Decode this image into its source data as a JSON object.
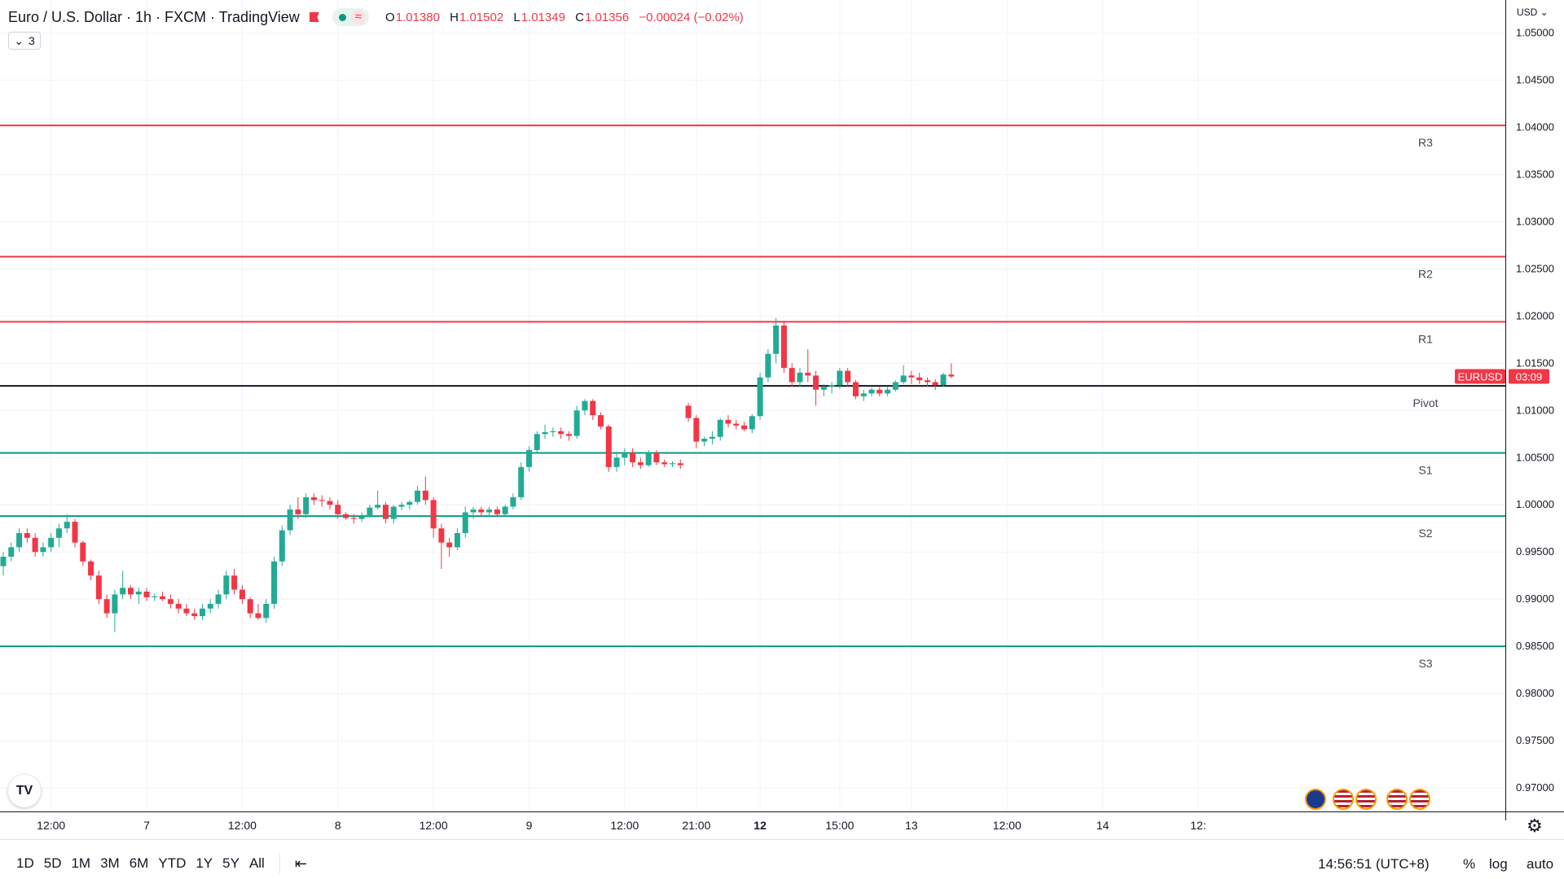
{
  "header": {
    "title": "Euro / U.S. Dollar · 1h · FXCM · TradingView",
    "ohlc": {
      "o_label": "O",
      "o": "1.01380",
      "h_label": "H",
      "h": "1.01502",
      "l_label": "L",
      "l": "1.01349",
      "c_label": "C",
      "c": "1.01356",
      "change": "−0.00024 (−0.02%)"
    },
    "indicator_count": "3",
    "currency": "USD"
  },
  "colors": {
    "up": "#22ab94",
    "down": "#f23645",
    "resistance": "#f23645",
    "support": "#089981",
    "pivot": "#131722",
    "grid": "#f0f3fa",
    "axis_text": "#131722"
  },
  "chart_data": {
    "type": "candlestick",
    "y_ticks": [
      "1.05000",
      "1.04500",
      "1.04000",
      "1.03500",
      "1.03000",
      "1.02500",
      "1.02000",
      "1.01500",
      "1.01000",
      "1.00500",
      "1.00000",
      "0.99500",
      "0.99000",
      "0.98500",
      "0.98000",
      "0.97500",
      "0.97000"
    ],
    "ylim": [
      0.9675,
      1.0535
    ],
    "x_ticks": [
      {
        "label": "12:00",
        "i": 6,
        "bold": false
      },
      {
        "label": "7",
        "i": 18,
        "bold": false
      },
      {
        "label": "12:00",
        "i": 30,
        "bold": false
      },
      {
        "label": "8",
        "i": 42,
        "bold": false
      },
      {
        "label": "12:00",
        "i": 54,
        "bold": false
      },
      {
        "label": "9",
        "i": 66,
        "bold": false
      },
      {
        "label": "12:00",
        "i": 78,
        "bold": false
      },
      {
        "label": "21:00",
        "i": 87,
        "bold": false
      },
      {
        "label": "12",
        "i": 95,
        "bold": true
      },
      {
        "label": "15:00",
        "i": 105,
        "bold": false
      },
      {
        "label": "13",
        "i": 114,
        "bold": false
      },
      {
        "label": "12:00",
        "i": 126,
        "bold": false
      },
      {
        "label": "14",
        "i": 138,
        "bold": false
      },
      {
        "label": "12:",
        "i": 150,
        "bold": false
      }
    ],
    "levels": [
      {
        "name": "R3",
        "value": 1.0402,
        "kind": "resistance"
      },
      {
        "name": "R2",
        "value": 1.0263,
        "kind": "resistance"
      },
      {
        "name": "R1",
        "value": 1.0194,
        "kind": "resistance"
      },
      {
        "name": "Pivot",
        "value": 1.0126,
        "kind": "pivot"
      },
      {
        "name": "S1",
        "value": 1.0055,
        "kind": "support"
      },
      {
        "name": "S2",
        "value": 0.9988,
        "kind": "support"
      },
      {
        "name": "S3",
        "value": 0.985,
        "kind": "support"
      }
    ],
    "last_price_label": {
      "symbol": "EURUSD",
      "countdown": "03:09",
      "value": 1.0136
    },
    "candles": [
      [
        0.9935,
        0.995,
        0.9925,
        0.9945
      ],
      [
        0.9945,
        0.996,
        0.994,
        0.9955
      ],
      [
        0.9955,
        0.9975,
        0.995,
        0.997
      ],
      [
        0.997,
        0.9975,
        0.996,
        0.9965
      ],
      [
        0.9965,
        0.997,
        0.9945,
        0.995
      ],
      [
        0.995,
        0.996,
        0.9945,
        0.9955
      ],
      [
        0.9955,
        0.997,
        0.995,
        0.9965
      ],
      [
        0.9965,
        0.998,
        0.9955,
        0.9975
      ],
      [
        0.9975,
        0.999,
        0.997,
        0.9982
      ],
      [
        0.9982,
        0.9985,
        0.9955,
        0.996
      ],
      [
        0.996,
        0.9962,
        0.9935,
        0.994
      ],
      [
        0.994,
        0.9942,
        0.992,
        0.9925
      ],
      [
        0.9925,
        0.993,
        0.9895,
        0.99
      ],
      [
        0.99,
        0.9905,
        0.988,
        0.9885
      ],
      [
        0.9885,
        0.991,
        0.9865,
        0.9905
      ],
      [
        0.9905,
        0.993,
        0.99,
        0.9912
      ],
      [
        0.9912,
        0.9915,
        0.99,
        0.9905
      ],
      [
        0.9905,
        0.9912,
        0.9895,
        0.9908
      ],
      [
        0.9908,
        0.9912,
        0.9898,
        0.9902
      ],
      [
        0.9902,
        0.9906,
        0.9898,
        0.9903
      ],
      [
        0.9903,
        0.9908,
        0.9898,
        0.99
      ],
      [
        0.99,
        0.9905,
        0.989,
        0.9895
      ],
      [
        0.9895,
        0.99,
        0.9885,
        0.989
      ],
      [
        0.989,
        0.9895,
        0.9882,
        0.9885
      ],
      [
        0.9885,
        0.989,
        0.9878,
        0.9882
      ],
      [
        0.9882,
        0.9895,
        0.9878,
        0.989
      ],
      [
        0.989,
        0.99,
        0.9885,
        0.9895
      ],
      [
        0.9895,
        0.991,
        0.989,
        0.9905
      ],
      [
        0.9905,
        0.993,
        0.99,
        0.9925
      ],
      [
        0.9925,
        0.9932,
        0.9905,
        0.991
      ],
      [
        0.991,
        0.9915,
        0.9895,
        0.99
      ],
      [
        0.99,
        0.9902,
        0.988,
        0.9885
      ],
      [
        0.9885,
        0.9895,
        0.9878,
        0.988
      ],
      [
        0.988,
        0.99,
        0.9875,
        0.9895
      ],
      [
        0.9895,
        0.9945,
        0.989,
        0.994
      ],
      [
        0.994,
        0.9978,
        0.9935,
        0.9973
      ],
      [
        0.9973,
        1.0,
        0.9968,
        0.9995
      ],
      [
        0.9995,
        1.0008,
        0.9985,
        0.999
      ],
      [
        0.999,
        1.0012,
        0.9986,
        1.0008
      ],
      [
        1.0008,
        1.0012,
        1.0,
        1.0005
      ],
      [
        1.0005,
        1.001,
        0.9998,
        1.0004
      ],
      [
        1.0004,
        1.0008,
        0.9995,
        1.0
      ],
      [
        1.0,
        1.0005,
        0.9985,
        0.999
      ],
      [
        0.999,
        0.9992,
        0.9984,
        0.9986
      ],
      [
        0.9986,
        0.999,
        0.998,
        0.9985
      ],
      [
        0.9985,
        0.9992,
        0.9982,
        0.9988
      ],
      [
        0.9988,
        1.0,
        0.9986,
        0.9997
      ],
      [
        0.9997,
        1.0015,
        0.9995,
        1.0
      ],
      [
        1.0,
        1.0003,
        0.998,
        0.9985
      ],
      [
        0.9985,
        1.0,
        0.998,
        0.9998
      ],
      [
        0.9998,
        1.0003,
        0.9994,
        1.0
      ],
      [
        1.0,
        1.0005,
        0.9995,
        1.0003
      ],
      [
        1.0003,
        1.002,
        1.0,
        1.0015
      ],
      [
        1.0015,
        1.003,
        1.0,
        1.0005
      ],
      [
        1.0005,
        1.0008,
        0.9965,
        0.9975
      ],
      [
        0.9975,
        0.998,
        0.9932,
        0.996
      ],
      [
        0.996,
        0.9965,
        0.9945,
        0.9955
      ],
      [
        0.9955,
        0.9975,
        0.9952,
        0.997
      ],
      [
        0.997,
        0.9998,
        0.9965,
        0.9992
      ],
      [
        0.9992,
        0.9998,
        0.9985,
        0.9995
      ],
      [
        0.9995,
        0.9998,
        0.9988,
        0.9992
      ],
      [
        0.9992,
        0.9998,
        0.9988,
        0.9995
      ],
      [
        0.9995,
        0.9998,
        0.9988,
        0.999
      ],
      [
        0.999,
        1.0,
        0.9988,
        0.9998
      ],
      [
        0.9998,
        1.0012,
        0.9995,
        1.0008
      ],
      [
        1.0008,
        1.0045,
        1.0005,
        1.004
      ],
      [
        1.004,
        1.0062,
        1.0035,
        1.0058
      ],
      [
        1.0058,
        1.0078,
        1.0055,
        1.0075
      ],
      [
        1.0075,
        1.0085,
        1.007,
        1.0077
      ],
      [
        1.0077,
        1.0082,
        1.0072,
        1.0078
      ],
      [
        1.0078,
        1.0082,
        1.007,
        1.0075
      ],
      [
        1.0075,
        1.0078,
        1.0068,
        1.0073
      ],
      [
        1.0073,
        1.0105,
        1.007,
        1.01
      ],
      [
        1.01,
        1.0112,
        1.0095,
        1.011
      ],
      [
        1.011,
        1.0112,
        1.009,
        1.0095
      ],
      [
        1.0095,
        1.0098,
        1.008,
        1.0083
      ],
      [
        1.0083,
        1.0085,
        1.0035,
        1.004
      ],
      [
        1.004,
        1.0055,
        1.0035,
        1.005
      ],
      [
        1.005,
        1.006,
        1.0042,
        1.0055
      ],
      [
        1.0055,
        1.006,
        1.004,
        1.0045
      ],
      [
        1.0045,
        1.005,
        1.0038,
        1.0042
      ],
      [
        1.0042,
        1.0058,
        1.004,
        1.0055
      ],
      [
        1.0055,
        1.0058,
        1.0042,
        1.0045
      ],
      [
        1.0045,
        1.0048,
        1.004,
        1.0043
      ],
      [
        1.0043,
        1.0046,
        1.004,
        1.0044
      ],
      [
        1.0044,
        1.0048,
        1.0038,
        1.0042
      ],
      [
        1.0105,
        1.0108,
        1.0088,
        1.0092
      ],
      [
        1.0092,
        1.0095,
        1.006,
        1.0067
      ],
      [
        1.0067,
        1.0072,
        1.0062,
        1.007
      ],
      [
        1.007,
        1.0078,
        1.0064,
        1.0072
      ],
      [
        1.0072,
        1.0092,
        1.0068,
        1.009
      ],
      [
        1.009,
        1.0095,
        1.0082,
        1.0086
      ],
      [
        1.0086,
        1.009,
        1.008,
        1.0084
      ],
      [
        1.0084,
        1.0088,
        1.0078,
        1.008
      ],
      [
        1.008,
        1.0096,
        1.0076,
        1.0094
      ],
      [
        1.0094,
        1.014,
        1.009,
        1.0135
      ],
      [
        1.0135,
        1.0165,
        1.013,
        1.016
      ],
      [
        1.016,
        1.0198,
        1.015,
        1.019
      ],
      [
        1.019,
        1.0195,
        1.014,
        1.0145
      ],
      [
        1.0145,
        1.015,
        1.0125,
        1.013
      ],
      [
        1.013,
        1.0145,
        1.0125,
        1.014
      ],
      [
        1.014,
        1.0165,
        1.013,
        1.0137
      ],
      [
        1.0137,
        1.0142,
        1.0105,
        1.0122
      ],
      [
        1.0122,
        1.0128,
        1.0115,
        1.0125
      ],
      [
        1.0125,
        1.013,
        1.0118,
        1.0127
      ],
      [
        1.0127,
        1.0145,
        1.0123,
        1.0142
      ],
      [
        1.0142,
        1.0145,
        1.0125,
        1.013
      ],
      [
        1.013,
        1.0132,
        1.0112,
        1.0115
      ],
      [
        1.0115,
        1.0122,
        1.011,
        1.0118
      ],
      [
        1.0118,
        1.0124,
        1.0115,
        1.0122
      ],
      [
        1.0122,
        1.0125,
        1.0115,
        1.0118
      ],
      [
        1.0118,
        1.0125,
        1.0115,
        1.0122
      ],
      [
        1.0122,
        1.0132,
        1.012,
        1.013
      ],
      [
        1.013,
        1.0148,
        1.0128,
        1.0137
      ],
      [
        1.0137,
        1.0142,
        1.0128,
        1.0135
      ],
      [
        1.0135,
        1.014,
        1.0128,
        1.0132
      ],
      [
        1.0132,
        1.0135,
        1.0125,
        1.013
      ],
      [
        1.013,
        1.0133,
        1.0122,
        1.0127
      ],
      [
        1.0127,
        1.014,
        1.0125,
        1.0138
      ],
      [
        1.0138,
        1.015,
        1.0134,
        1.0136
      ]
    ]
  },
  "bottom_bar": {
    "timeframes": [
      "1D",
      "5D",
      "1M",
      "3M",
      "6M",
      "YTD",
      "1Y",
      "5Y",
      "All"
    ],
    "date_range_icon": "calendar-range-icon",
    "clock": "14:56:51 (UTC+8)",
    "percent": "%",
    "log": "log",
    "auto": "auto"
  },
  "icons": {
    "logo": "tradingview-logo-icon",
    "settings": "gear-icon",
    "collapse": "chevron-down-icon"
  }
}
